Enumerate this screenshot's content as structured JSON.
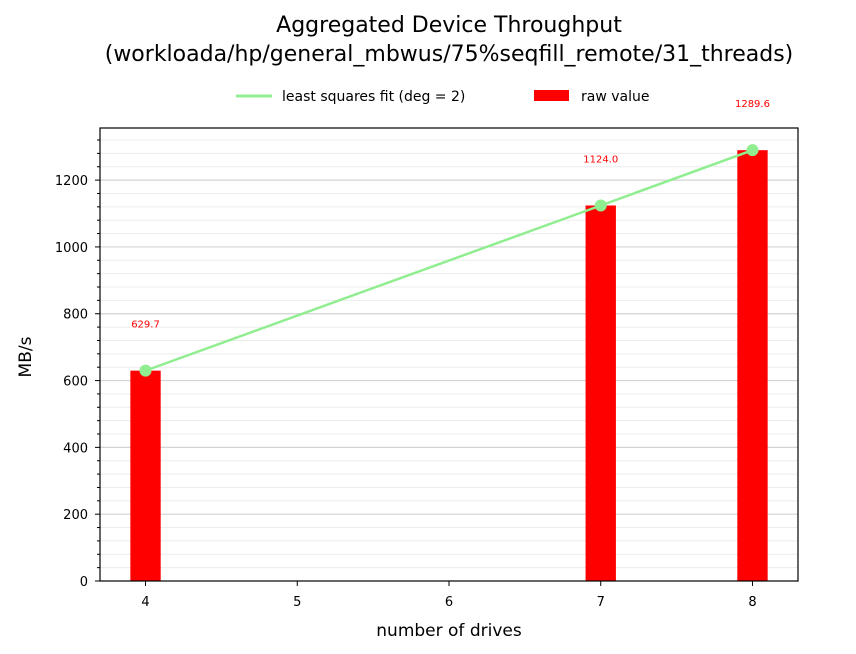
{
  "chart_data": {
    "type": "bar",
    "title_line1": "Aggregated Device Throughput",
    "title_line2": "(workloada/hp/general_mbwus/75%seqfill_remote/31_threads)",
    "xlabel": "number of drives",
    "ylabel": "MB/s",
    "xlim": [
      3.7,
      8.3
    ],
    "ylim": [
      0,
      1356
    ],
    "x_ticks": [
      "4",
      "5",
      "6",
      "7",
      "8"
    ],
    "y_ticks": [
      "0",
      "200",
      "400",
      "600",
      "800",
      "1000",
      "1200"
    ],
    "grid": "horizontal major and minor",
    "legend_position": "top-center",
    "legend": {
      "fit_label": "least squares fit (deg = 2)",
      "bar_label": "raw value"
    },
    "series": [
      {
        "name": "raw value",
        "type": "bar",
        "color": "#ff0000",
        "x": [
          4,
          7,
          8
        ],
        "values": [
          629.7,
          1124.0,
          1289.6
        ],
        "labels": [
          "629.7",
          "1124.0",
          "1289.6"
        ]
      },
      {
        "name": "least squares fit (deg = 2)",
        "type": "line",
        "color": "#90ee90",
        "x": [
          4,
          7,
          8
        ],
        "values": [
          629.7,
          1124.0,
          1289.6
        ]
      }
    ]
  }
}
